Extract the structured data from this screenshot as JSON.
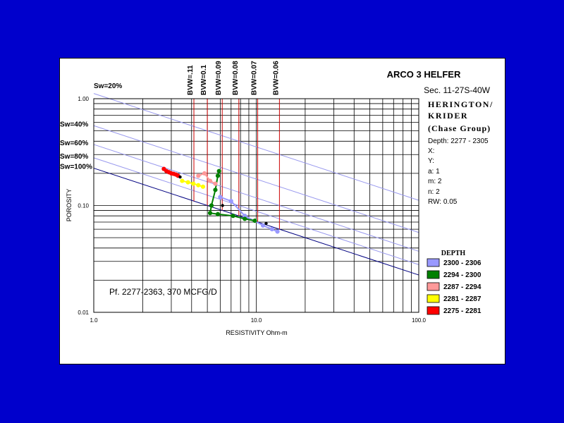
{
  "chart_data": {
    "type": "scatter",
    "title": "ARCO 3 HELFER",
    "subtitle": "Sec. 11-27S-40W",
    "xlabel": "RESISTIVITY Ohm-m",
    "ylabel": "POROSITY",
    "xscale": "log",
    "yscale": "log",
    "xlim": [
      1.0,
      100.0
    ],
    "ylim": [
      0.01,
      1.0
    ],
    "x_ticks": [
      "1.0",
      "10.0",
      "100.0"
    ],
    "y_ticks": [
      "1.00",
      "0.10",
      "0.01"
    ],
    "grid": true,
    "sw_lines": [
      {
        "label": "Sw=20%",
        "sw": 0.2
      },
      {
        "label": "Sw=40%",
        "sw": 0.4
      },
      {
        "label": "Sw=60%",
        "sw": 0.6
      },
      {
        "label": "Sw=80%",
        "sw": 0.8
      },
      {
        "label": "Sw=100%",
        "sw": 1.0
      }
    ],
    "bvw_lines": [
      {
        "label": "BVW=.11",
        "bvw": 0.11
      },
      {
        "label": "BVW=0.1",
        "bvw": 0.1
      },
      {
        "label": "BVW=0.09",
        "bvw": 0.09
      },
      {
        "label": "BVW=0.08",
        "bvw": 0.08
      },
      {
        "label": "BVW=0.07",
        "bvw": 0.07
      },
      {
        "label": "BVW=0.06",
        "bvw": 0.06
      }
    ],
    "info": {
      "zone": [
        "HERINGTON/",
        "KRIDER",
        "(Chase Group)"
      ],
      "params": [
        "Depth: 2277 - 2305",
        "X:",
        "Y:",
        "a: 1",
        "m: 2",
        "n: 2",
        "RW: 0.05"
      ]
    },
    "annotation": "Pf. 2277-2363, 370 MCFG/D",
    "legend_title": "DEPTH",
    "legend_position": "bottom-right",
    "series": [
      {
        "name": "2300 - 2306",
        "color": "#9999ff",
        "points": [
          [
            6.0,
            0.12
          ],
          [
            7.0,
            0.11
          ],
          [
            8.5,
            0.08
          ],
          [
            11.0,
            0.065
          ],
          [
            12.5,
            0.06
          ],
          [
            13.5,
            0.057
          ]
        ]
      },
      {
        "name": "2294 - 2300",
        "color": "#008000",
        "points": [
          [
            5.9,
            0.21
          ],
          [
            5.8,
            0.19
          ],
          [
            5.6,
            0.14
          ],
          [
            5.3,
            0.1
          ],
          [
            5.2,
            0.085
          ],
          [
            5.8,
            0.083
          ],
          [
            7.2,
            0.08
          ],
          [
            8.5,
            0.075
          ],
          [
            9.8,
            0.072
          ]
        ]
      },
      {
        "name": "2287 - 2294",
        "color": "#ff9999",
        "points": [
          [
            4.4,
            0.19
          ],
          [
            4.8,
            0.2
          ],
          [
            5.2,
            0.17
          ],
          [
            5.6,
            0.16
          ]
        ]
      },
      {
        "name": "2281 - 2287",
        "color": "#ffff00",
        "points": [
          [
            3.5,
            0.17
          ],
          [
            3.8,
            0.165
          ],
          [
            4.1,
            0.16
          ],
          [
            4.4,
            0.155
          ],
          [
            4.7,
            0.15
          ]
        ]
      },
      {
        "name": "2275 - 2281",
        "color": "#ff0000",
        "points": [
          [
            2.7,
            0.22
          ],
          [
            2.8,
            0.21
          ],
          [
            2.9,
            0.205
          ],
          [
            3.0,
            0.2
          ],
          [
            3.1,
            0.198
          ],
          [
            3.2,
            0.195
          ],
          [
            3.3,
            0.19
          ]
        ]
      }
    ],
    "highlight_points": [
      [
        3.4,
        0.185
      ],
      [
        6.2,
        0.1
      ],
      [
        11.5,
        0.068
      ]
    ]
  },
  "colors": {
    "background": "#0000cc",
    "panel": "#ffffff",
    "sw_line": "#9999ee",
    "sw100_line": "#000080",
    "bvw_line": "#cc0000",
    "highlight": "#000000"
  }
}
